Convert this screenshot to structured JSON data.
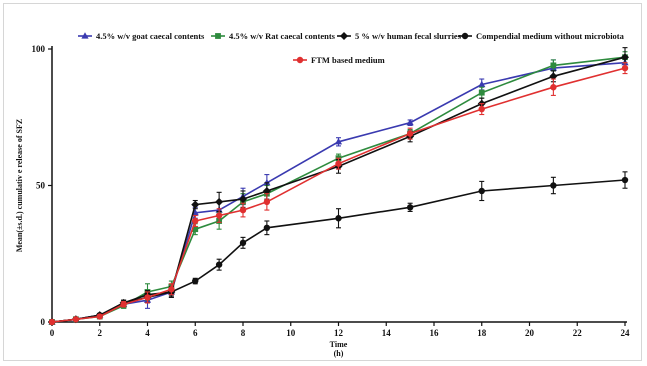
{
  "chart_data": {
    "type": "line",
    "title": "",
    "xlabel": "Time",
    "xlabel_unit": "(h)",
    "ylabel": "Mean(±s.d.) cumulativ e release of SFZ",
    "xlim": [
      0,
      24
    ],
    "ylim": [
      0,
      100
    ],
    "x_ticks": [
      0,
      2,
      4,
      6,
      8,
      10,
      12,
      14,
      16,
      18,
      20,
      22,
      24
    ],
    "y_ticks": [
      0,
      50,
      100
    ],
    "grid": false,
    "legend_position": "top",
    "series": [
      {
        "name": "4.5% w/v goat caecal contents",
        "color": "#3a3ab0",
        "marker": "triangle",
        "x": [
          0,
          1,
          2,
          3,
          4,
          5,
          6,
          7,
          8,
          9,
          12,
          15,
          18,
          21,
          24
        ],
        "y": [
          0,
          1,
          2.5,
          6.5,
          8,
          11,
          40,
          41,
          46,
          51,
          66,
          73,
          87,
          93,
          95
        ],
        "err": [
          0,
          0.5,
          0.5,
          1,
          3,
          2,
          2,
          3,
          3,
          3,
          1.5,
          1,
          2,
          3,
          2
        ]
      },
      {
        "name": "4.5% w/v Rat caecal contents",
        "color": "#2e8b3e",
        "marker": "square",
        "x": [
          0,
          1,
          2,
          3,
          4,
          5,
          6,
          7,
          8,
          9,
          12,
          15,
          18,
          21,
          24
        ],
        "y": [
          0,
          1,
          2,
          6,
          11,
          13,
          34,
          37,
          44,
          47,
          60,
          69,
          84,
          94,
          97
        ],
        "err": [
          0,
          0.5,
          0.5,
          1,
          3,
          2,
          2,
          3,
          3,
          3,
          1.5,
          1.5,
          2,
          2,
          2
        ]
      },
      {
        "name": "5 % w/v human fecal slurries",
        "color": "#111111",
        "marker": "diamond",
        "x": [
          0,
          1,
          2,
          3,
          4,
          5,
          6,
          7,
          8,
          9,
          12,
          15,
          18,
          21,
          24
        ],
        "y": [
          0,
          1,
          2.5,
          7,
          9,
          11,
          43,
          44,
          45,
          48,
          57,
          68,
          80,
          90,
          97
        ],
        "err": [
          0,
          0.5,
          0.5,
          1,
          2,
          2,
          1.5,
          3.5,
          3,
          3,
          2.5,
          2,
          2,
          2,
          3.5
        ]
      },
      {
        "name": "Compendial medium without microbiota",
        "color": "#111111",
        "marker": "circle",
        "x": [
          0,
          1,
          2,
          3,
          4,
          5,
          6,
          7,
          8,
          9,
          12,
          15,
          18,
          21,
          24
        ],
        "y": [
          0,
          1,
          2.5,
          7,
          10,
          11,
          15,
          21,
          29,
          34.5,
          38,
          42,
          48,
          50,
          52
        ],
        "err": [
          0,
          0.5,
          0.5,
          1,
          1.5,
          1.5,
          1,
          2,
          2,
          2.5,
          3.5,
          1.5,
          3.5,
          3,
          3
        ]
      },
      {
        "name": "FTM based medium",
        "color": "#e03030",
        "marker": "circle",
        "x": [
          0,
          1,
          2,
          3,
          4,
          5,
          6,
          7,
          8,
          9,
          12,
          15,
          18,
          21,
          24
        ],
        "y": [
          0,
          1,
          2,
          6.5,
          9,
          12,
          37,
          39,
          41,
          44,
          58,
          69,
          78,
          86,
          93
        ],
        "err": [
          0,
          0.5,
          0.5,
          1,
          2,
          2,
          2,
          2.5,
          2.5,
          3,
          2,
          2,
          2,
          3,
          2
        ]
      }
    ]
  }
}
